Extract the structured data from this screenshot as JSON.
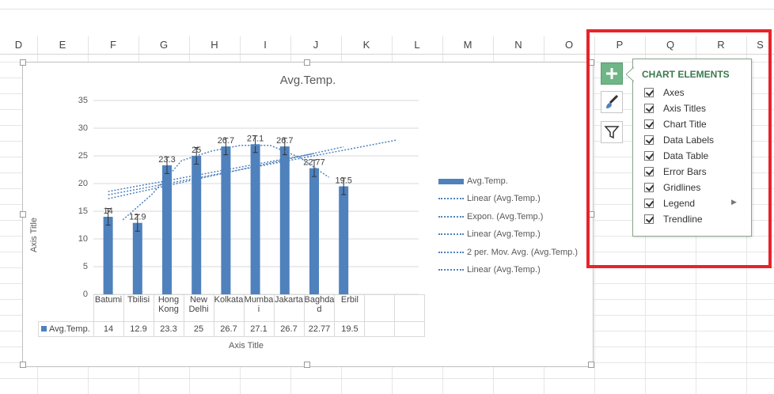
{
  "columns": [
    "D",
    "E",
    "F",
    "G",
    "H",
    "I",
    "J",
    "K",
    "L",
    "M",
    "N",
    "O",
    "P",
    "Q",
    "R",
    "S"
  ],
  "chart": {
    "title": "Avg.Temp.",
    "y_axis_title": "Axis Title",
    "x_axis_title": "Axis Title",
    "legend": [
      {
        "label": "Avg.Temp.",
        "kind": "bar"
      },
      {
        "label": "Linear (Avg.Temp.)",
        "kind": "dotted"
      },
      {
        "label": "Expon. (Avg.Temp.)",
        "kind": "dotted"
      },
      {
        "label": "Linear (Avg.Temp.)",
        "kind": "dotted"
      },
      {
        "label": "2 per. Mov. Avg. (Avg.Temp.)",
        "kind": "dotted"
      },
      {
        "label": "Linear (Avg.Temp.)",
        "kind": "dotted"
      }
    ],
    "data_table": {
      "series_label": "Avg.Temp.",
      "values_text": [
        "14",
        "12.9",
        "23.3",
        "25",
        "26.7",
        "27.1",
        "26.7",
        "22.77",
        "19.5"
      ]
    }
  },
  "chart_data": {
    "type": "bar",
    "title": "Avg.Temp.",
    "xlabel": "Axis Title",
    "ylabel": "Axis Title",
    "categories": [
      "Batumi",
      "Tbilisi",
      "Hong Kong",
      "New Delhi",
      "Kolkata",
      "Mumbai",
      "Jakarta",
      "Baghdad",
      "Erbil"
    ],
    "category_lines": [
      [
        "Batumi"
      ],
      [
        "Tbilisi"
      ],
      [
        "Hong",
        "Kong"
      ],
      [
        "New",
        "Delhi"
      ],
      [
        "Kolkata"
      ],
      [
        "Mumba",
        "i"
      ],
      [
        "Jakarta"
      ],
      [
        "Baghda",
        "d"
      ],
      [
        "Erbil"
      ]
    ],
    "series": [
      {
        "name": "Avg.Temp.",
        "values": [
          14,
          12.9,
          23.3,
          25,
          26.7,
          27.1,
          26.7,
          22.77,
          19.5
        ]
      }
    ],
    "data_labels": [
      "14",
      "12.9",
      "23.3",
      "25",
      "26.7",
      "27.1",
      "26.7",
      "22.77",
      "19.5"
    ],
    "ylim": [
      0,
      35
    ],
    "yticks": [
      0,
      5,
      10,
      15,
      20,
      25,
      30,
      35
    ],
    "grid": true,
    "error_bars": true,
    "legend_position": "right",
    "color": "#4f81bd"
  },
  "chart_elements": {
    "title": "CHART ELEMENTS",
    "items": [
      {
        "label": "Axes",
        "checked": true
      },
      {
        "label": "Axis Titles",
        "checked": true
      },
      {
        "label": "Chart Title",
        "checked": true
      },
      {
        "label": "Data Labels",
        "checked": true
      },
      {
        "label": "Data Table",
        "checked": true
      },
      {
        "label": "Error Bars",
        "checked": true
      },
      {
        "label": "Gridlines",
        "checked": true
      },
      {
        "label": "Legend",
        "checked": true,
        "submenu_arrow": "▶"
      },
      {
        "label": "Trendline",
        "checked": true
      }
    ]
  },
  "side_buttons": [
    {
      "name": "chart-elements-button",
      "icon": "plus-icon"
    },
    {
      "name": "chart-styles-button",
      "icon": "brush-icon"
    },
    {
      "name": "chart-filters-button",
      "icon": "funnel-icon"
    }
  ],
  "colors": {
    "accent": "#4f81bd",
    "highlight": "#e8232a",
    "button_green": "#6fb687",
    "flyout_title": "#3a7a4f"
  }
}
